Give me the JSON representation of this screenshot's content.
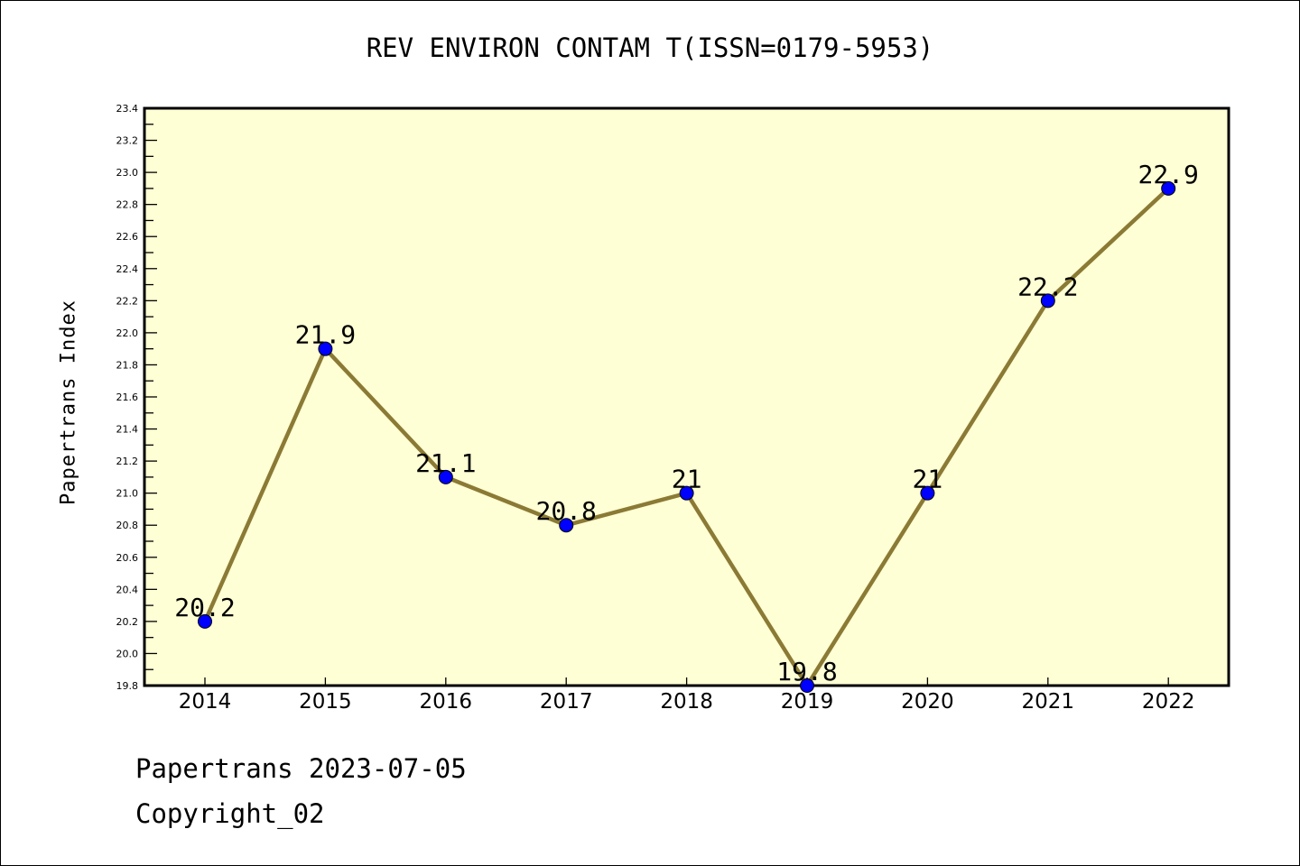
{
  "chart_data": {
    "type": "line",
    "title": "REV ENVIRON CONTAM T(ISSN=0179-5953)",
    "xlabel": "",
    "ylabel": "Papertrans Index",
    "x": [
      "2014",
      "2015",
      "2016",
      "2017",
      "2018",
      "2019",
      "2020",
      "2021",
      "2022"
    ],
    "values": [
      20.2,
      21.9,
      21.1,
      20.8,
      21,
      19.8,
      21,
      22.2,
      22.9
    ],
    "data_labels": [
      "20.2",
      "21.9",
      "21.1",
      "20.8",
      "21",
      "19.8",
      "21",
      "22.2",
      "22.9"
    ],
    "ylim": [
      19.8,
      23.4
    ],
    "yticks": [
      "19.8",
      "20.0",
      "20.2",
      "20.4",
      "20.6",
      "20.8",
      "21.0",
      "21.2",
      "21.4",
      "21.6",
      "21.8",
      "22.0",
      "22.2",
      "22.4",
      "22.6",
      "22.8",
      "23.0",
      "23.2",
      "23.4"
    ],
    "grid": false,
    "colors": {
      "line": "#8b7a35",
      "marker": "#0000ff",
      "plot_bg": "#ffffd5"
    }
  },
  "footer": {
    "line1": "Papertrans 2023-07-05",
    "line2": "Copyright_02"
  }
}
